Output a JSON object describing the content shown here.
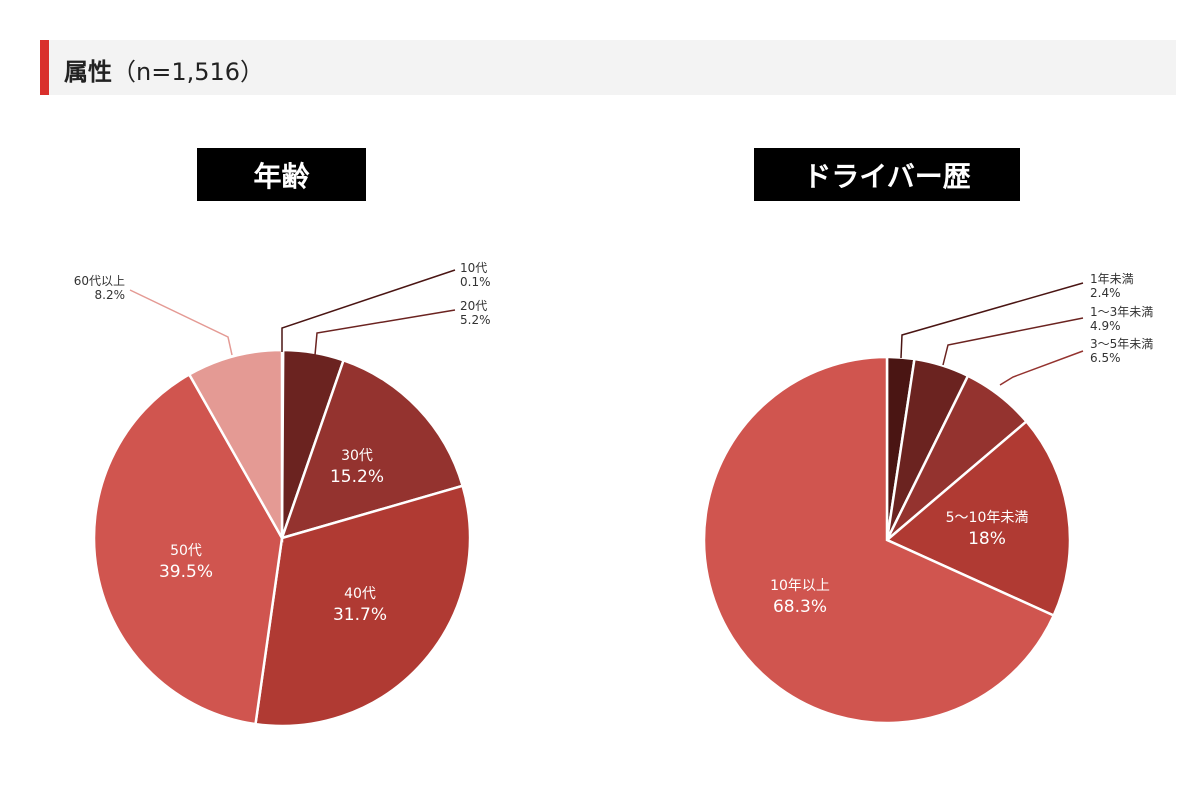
{
  "header": {
    "title": "属性",
    "sample": "（n=1,516）"
  },
  "chart_data": [
    {
      "type": "pie",
      "title": "年齢",
      "start": "top",
      "direction": "clockwise",
      "slices": [
        {
          "label": "10代",
          "value": 0.1,
          "display": "0.1%",
          "color": "#4a1513"
        },
        {
          "label": "20代",
          "value": 5.2,
          "display": "5.2%",
          "color": "#6b2320"
        },
        {
          "label": "30代",
          "value": 15.2,
          "display": "15.2%",
          "color": "#94332f"
        },
        {
          "label": "40代",
          "value": 31.7,
          "display": "31.7%",
          "color": "#b03a33"
        },
        {
          "label": "50代",
          "value": 39.5,
          "display": "39.5%",
          "color": "#d0554f"
        },
        {
          "label": "60代以上",
          "value": 8.2,
          "display": "8.2%",
          "color": "#e49a94"
        }
      ]
    },
    {
      "type": "pie",
      "title": "ドライバー歴",
      "start": "top",
      "direction": "clockwise",
      "slices": [
        {
          "label": "1年未満",
          "value": 2.4,
          "display": "2.4%",
          "color": "#4a1513"
        },
        {
          "label": "1〜3年未満",
          "value": 4.9,
          "display": "4.9%",
          "color": "#6b2320"
        },
        {
          "label": "3〜5年未満",
          "value": 6.5,
          "display": "6.5%",
          "color": "#94332f"
        },
        {
          "label": "5〜10年未満",
          "value": 18,
          "display": "18%",
          "color": "#b03a33"
        },
        {
          "label": "10年以上",
          "value": 68.3,
          "display": "68.3%",
          "color": "#d0554f"
        }
      ]
    }
  ]
}
